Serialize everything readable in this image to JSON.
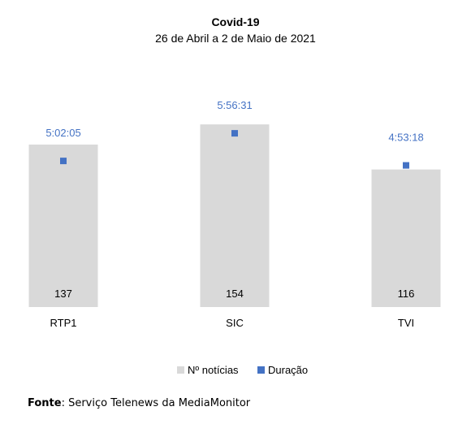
{
  "chart_data": {
    "type": "bar",
    "title": "Covid-19",
    "subtitle": "26 de Abril a 2 de Maio de 2021",
    "categories": [
      "RTP1",
      "SIC",
      "TVI"
    ],
    "series": [
      {
        "name": "Nº notícias",
        "kind": "bar",
        "values": [
          137,
          154,
          116
        ],
        "labels": [
          "137",
          "154",
          "116"
        ]
      },
      {
        "name": "Duração",
        "kind": "marker",
        "values": [
          "5:02:05",
          "5:56:31",
          "4:53:18"
        ],
        "labels": [
          "5:02:05",
          "5:56:31",
          "4:53:18"
        ]
      }
    ],
    "legend_position": "bottom",
    "grid": false
  },
  "colors": {
    "bar": "#D9D9D9",
    "marker": "#4472C4"
  },
  "source": {
    "label": "Fonte",
    "text": ": Serviço Telenews da MediaMonitor"
  }
}
